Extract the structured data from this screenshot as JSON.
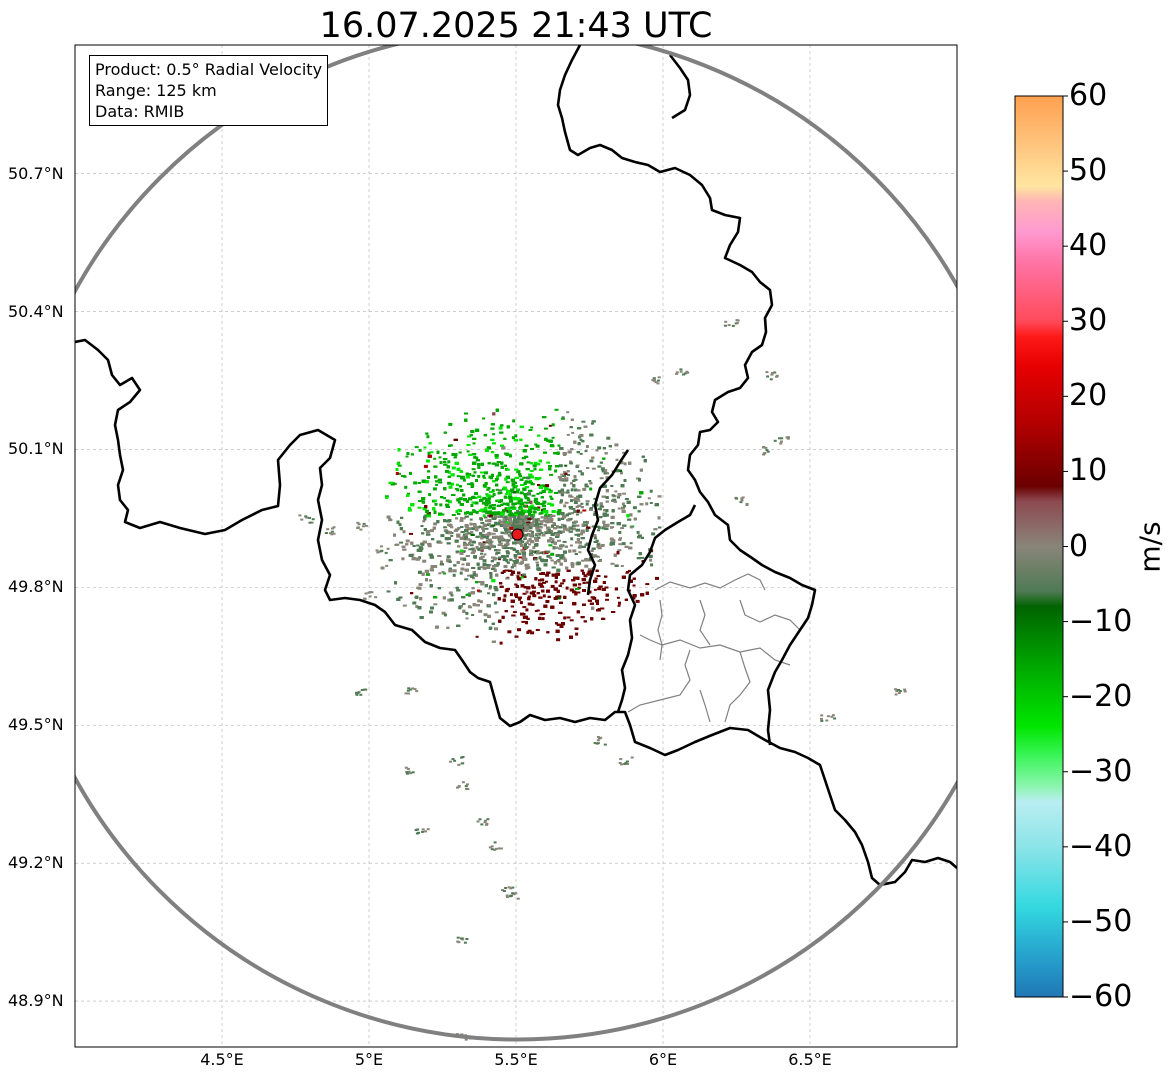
{
  "title": "16.07.2025 21:43 UTC",
  "info": {
    "product": "Product: 0.5° Radial Velocity",
    "range": "Range: 125 km",
    "data": "Data: RMIB"
  },
  "axes": {
    "lon_range": [
      4.0,
      7.0
    ],
    "lat_range": [
      48.8,
      50.98
    ],
    "lon_ticks": [
      {
        "value": 4.5,
        "label": "4.5°E"
      },
      {
        "value": 5.0,
        "label": "5°E"
      },
      {
        "value": 5.5,
        "label": "5.5°E"
      },
      {
        "value": 6.0,
        "label": "6°E"
      },
      {
        "value": 6.5,
        "label": "6.5°E"
      }
    ],
    "lat_ticks": [
      {
        "value": 50.7,
        "label": "50.7°N"
      },
      {
        "value": 50.4,
        "label": "50.4°N"
      },
      {
        "value": 50.1,
        "label": "50.1°N"
      },
      {
        "value": 49.8,
        "label": "49.8°N"
      },
      {
        "value": 49.5,
        "label": "49.5°N"
      },
      {
        "value": 49.2,
        "label": "49.2°N"
      },
      {
        "value": 48.9,
        "label": "48.9°N"
      }
    ],
    "grid": true
  },
  "radar": {
    "site": {
      "lon": 5.505,
      "lat": 49.915,
      "color": "#e41a1c"
    },
    "range_km": 125,
    "range_ring_color": "#808080"
  },
  "colorbar": {
    "label": "m/s",
    "min": -60,
    "max": 60,
    "ticks": [
      60,
      50,
      40,
      30,
      20,
      10,
      0,
      -10,
      -20,
      -30,
      -40,
      -50,
      -60
    ],
    "tick_labels": [
      "60",
      "50",
      "40",
      "30",
      "20",
      "10",
      "0",
      "−10",
      "−20",
      "−30",
      "−40",
      "−50",
      "−60"
    ],
    "stops": [
      {
        "value": -60,
        "color": "#1f77b4"
      },
      {
        "value": -56,
        "color": "#2497c8"
      },
      {
        "value": -52,
        "color": "#2bb6d4"
      },
      {
        "value": -48,
        "color": "#33d9e0"
      },
      {
        "value": -40,
        "color": "#8ce4e8"
      },
      {
        "value": -34,
        "color": "#b9eef2"
      },
      {
        "value": -32,
        "color": "#8df5b0"
      },
      {
        "value": -28,
        "color": "#3df55c"
      },
      {
        "value": -24,
        "color": "#00e600"
      },
      {
        "value": -16,
        "color": "#00a800"
      },
      {
        "value": -8,
        "color": "#006400"
      },
      {
        "value": -6,
        "color": "#4e7a54"
      },
      {
        "value": 0,
        "color": "#8a8579"
      },
      {
        "value": 6,
        "color": "#8c4a50"
      },
      {
        "value": 8,
        "color": "#6b0000"
      },
      {
        "value": 16,
        "color": "#b00000"
      },
      {
        "value": 24,
        "color": "#e60000"
      },
      {
        "value": 28,
        "color": "#ff1a1a"
      },
      {
        "value": 30,
        "color": "#ff4a5a"
      },
      {
        "value": 38,
        "color": "#ff75a8"
      },
      {
        "value": 42,
        "color": "#ff9ad0"
      },
      {
        "value": 46,
        "color": "#ffb6b6"
      },
      {
        "value": 48,
        "color": "#ffe6a0"
      },
      {
        "value": 54,
        "color": "#ffc27a"
      },
      {
        "value": 60,
        "color": "#ffa050"
      }
    ]
  },
  "map_colors": {
    "frame": "#000000",
    "border": "#000000",
    "province": "#808080",
    "grid": "#b0b0b0"
  }
}
